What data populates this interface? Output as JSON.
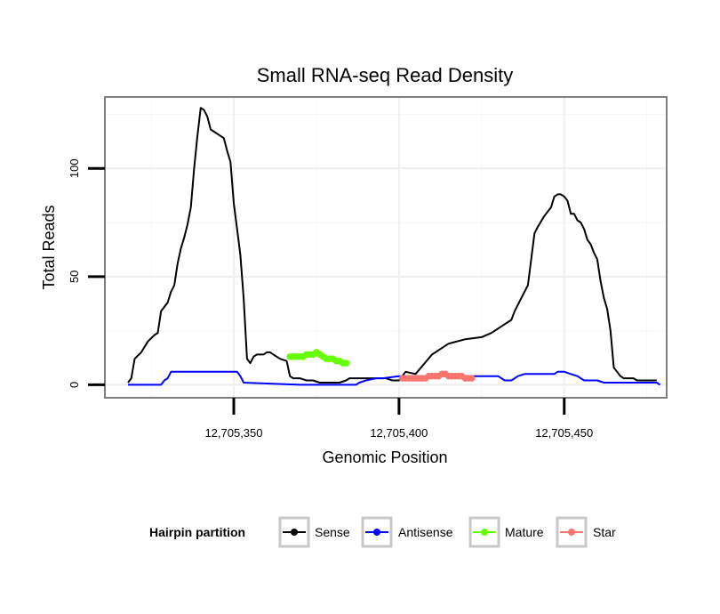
{
  "chart_data": {
    "type": "line",
    "title": "Small RNA-seq Read Density",
    "xlabel": "Genomic Position",
    "ylabel": "Total Reads",
    "xlim": [
      12705311,
      12705481
    ],
    "ylim": [
      -6,
      133
    ],
    "x_ticks": [
      12705350,
      12705400,
      12705450
    ],
    "x_tick_labels": [
      "12,705,350",
      "12,705,400",
      "12,705,450"
    ],
    "y_ticks": [
      0,
      50,
      100
    ],
    "y_tick_labels": [
      "0",
      "50",
      "100"
    ],
    "grid": true,
    "legend": {
      "title": "Hairpin partition",
      "position": "bottom",
      "entries": [
        "Sense",
        "Antisense",
        "Mature",
        "Star"
      ]
    },
    "series": [
      {
        "name": "Sense",
        "color": "#000000",
        "style": "line",
        "x": [
          12705318,
          12705319,
          12705320,
          12705322,
          12705324,
          12705326,
          12705327,
          12705328,
          12705329,
          12705330,
          12705331,
          12705332,
          12705333,
          12705334,
          12705335,
          12705336,
          12705337,
          12705338,
          12705339,
          12705340,
          12705341,
          12705342,
          12705343,
          12705344,
          12705345,
          12705346,
          12705347,
          12705348,
          12705349,
          12705350,
          12705351,
          12705352,
          12705353,
          12705354,
          12705355,
          12705356,
          12705357,
          12705358,
          12705359,
          12705360,
          12705361,
          12705362,
          12705363,
          12705364,
          12705366,
          12705367,
          12705368,
          12705369,
          12705370,
          12705372,
          12705374,
          12705376,
          12705378,
          12705380,
          12705382,
          12705384,
          12705385,
          12705386,
          12705388,
          12705390,
          12705392,
          12705394,
          12705396,
          12705398,
          12705400,
          12705402,
          12705405,
          12705410,
          12705415,
          12705420,
          12705425,
          12705428,
          12705430,
          12705432,
          12705434,
          12705435,
          12705437,
          12705439,
          12705441,
          12705442,
          12705444,
          12705446,
          12705447,
          12705448,
          12705449,
          12705450,
          12705451,
          12705452,
          12705453,
          12705454,
          12705455,
          12705456,
          12705457,
          12705458,
          12705459,
          12705460,
          12705461,
          12705462,
          12705463,
          12705464,
          12705465,
          12705466,
          12705467,
          12705468,
          12705469,
          12705470,
          12705471,
          12705472,
          12705473,
          12705474,
          12705475,
          12705476,
          12705477,
          12705478
        ],
        "y": [
          1,
          3,
          12,
          15,
          20,
          23,
          24,
          34,
          36,
          38,
          43,
          46,
          56,
          63,
          68,
          74,
          82,
          100,
          115,
          128,
          127,
          124,
          118,
          117,
          116,
          115,
          114,
          108,
          103,
          84,
          72,
          60,
          40,
          12,
          10,
          13,
          14,
          14,
          14,
          15,
          15,
          14,
          13,
          12,
          11,
          4,
          3,
          3,
          3,
          2,
          2,
          1,
          1,
          1,
          1,
          2,
          3,
          3,
          3,
          3,
          3,
          3,
          3,
          2,
          2,
          6,
          5,
          14,
          19,
          21,
          22,
          24,
          26,
          28,
          30,
          34,
          40,
          46,
          70,
          73,
          78,
          82,
          87,
          88,
          88,
          87,
          85,
          79,
          79,
          76,
          75,
          72,
          67,
          65,
          61,
          58,
          48,
          40,
          35,
          25,
          8,
          6,
          4,
          3,
          3,
          3,
          3,
          2,
          2,
          2,
          2,
          2,
          2,
          2
        ]
      },
      {
        "name": "Antisense",
        "color": "#0000ff",
        "style": "line",
        "x": [
          12705318,
          12705328,
          12705329,
          12705330,
          12705331,
          12705340,
          12705349,
          12705350,
          12705351,
          12705352,
          12705353,
          12705370,
          12705385,
          12705387,
          12705388,
          12705390,
          12705393,
          12705395,
          12705400,
          12705430,
          12705432,
          12705434,
          12705435,
          12705436,
          12705438,
          12705446,
          12705447,
          12705448,
          12705450,
          12705452,
          12705454,
          12705455,
          12705456,
          12705457,
          12705460,
          12705462,
          12705463,
          12705464,
          12705465,
          12705466,
          12705467,
          12705468,
          12705469,
          12705470,
          12705478,
          12705479
        ],
        "y": [
          0,
          0,
          2,
          3,
          6,
          6,
          6,
          6,
          6,
          4,
          1,
          0,
          0,
          0,
          1,
          2,
          3,
          3,
          4,
          4,
          2,
          2,
          3,
          4,
          5,
          5,
          5,
          6,
          6,
          5,
          4,
          3,
          2,
          2,
          2,
          1,
          1,
          1,
          1,
          1,
          1,
          1,
          1,
          1,
          1,
          0
        ]
      },
      {
        "name": "Mature",
        "color": "#66ff00",
        "style": "points",
        "x": [
          12705367,
          12705368,
          12705369,
          12705370,
          12705371,
          12705372,
          12705373,
          12705374,
          12705375,
          12705376,
          12705377,
          12705378,
          12705379,
          12705380,
          12705381,
          12705382,
          12705383,
          12705384
        ],
        "y": [
          13,
          13,
          13,
          13,
          13,
          14,
          14,
          14,
          15,
          14,
          13,
          12,
          12,
          12,
          11,
          11,
          10,
          10
        ]
      },
      {
        "name": "Star",
        "color": "#f8766d",
        "style": "points",
        "x": [
          12705401,
          12705402,
          12705403,
          12705404,
          12705405,
          12705406,
          12705407,
          12705408,
          12705409,
          12705410,
          12705411,
          12705412,
          12705413,
          12705414,
          12705415,
          12705416,
          12705417,
          12705418,
          12705419,
          12705420,
          12705421,
          12705422
        ],
        "y": [
          3,
          3,
          3,
          3,
          3,
          3,
          3,
          3,
          4,
          4,
          4,
          4,
          5,
          5,
          4,
          4,
          4,
          4,
          4,
          3,
          3,
          3
        ]
      }
    ]
  }
}
